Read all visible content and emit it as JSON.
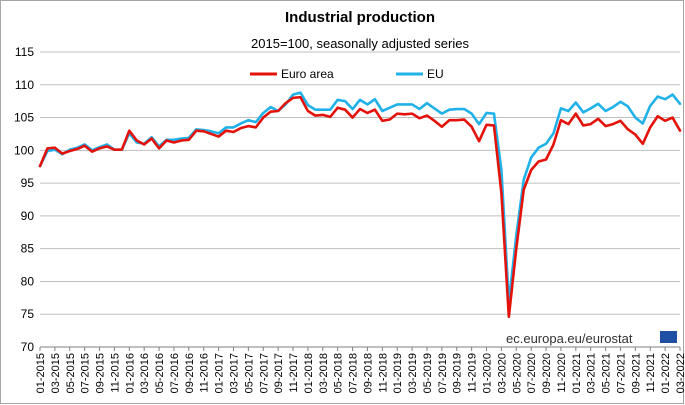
{
  "chart_data": {
    "type": "line",
    "title": "Industrial production",
    "subtitle": "2015=100, seasonally adjusted series",
    "xlabel": "",
    "ylabel": "",
    "ylim": [
      70,
      115
    ],
    "yticks": [
      70,
      75,
      80,
      85,
      90,
      95,
      100,
      105,
      110,
      115
    ],
    "grid": true,
    "legend_position": "top-center",
    "source": "ec.europa.eu/eurostat",
    "x_tick_labels": [
      "01-2015",
      "03-2015",
      "05-2015",
      "07-2015",
      "09-2015",
      "11-2015",
      "01-2016",
      "03-2016",
      "05-2016",
      "07-2016",
      "09-2016",
      "11-2016",
      "01-2017",
      "03-2017",
      "05-2017",
      "07-2017",
      "09-2017",
      "11-2017",
      "01-2018",
      "03-2018",
      "05-2018",
      "07-2018",
      "09-2018",
      "11-2018",
      "01-2019",
      "03-2019",
      "05-2019",
      "07-2019",
      "09-2019",
      "11-2019",
      "01-2020",
      "03-2020",
      "05-2020",
      "07-2020",
      "09-2020",
      "11-2020",
      "01-2021",
      "03-2021",
      "05-2021",
      "07-2021",
      "09-2021",
      "11-2021",
      "01-2022",
      "03-2022"
    ],
    "series": [
      {
        "name": "Euro area",
        "color": "#e3120b",
        "values": [
          97.6,
          100.3,
          100.4,
          99.5,
          99.9,
          100.2,
          100.7,
          99.8,
          100.3,
          100.6,
          100.1,
          100.1,
          103.0,
          101.5,
          100.9,
          101.8,
          100.3,
          101.5,
          101.2,
          101.5,
          101.6,
          103.0,
          102.9,
          102.5,
          102.1,
          103.0,
          102.8,
          103.4,
          103.7,
          103.5,
          105.0,
          105.9,
          106.0,
          107.2,
          108.0,
          108.1,
          106.0,
          105.3,
          105.4,
          105.1,
          106.5,
          106.2,
          105.0,
          106.3,
          105.7,
          106.2,
          104.5,
          104.7,
          105.6,
          105.5,
          105.6,
          104.9,
          105.3,
          104.5,
          103.6,
          104.6,
          104.6,
          104.7,
          103.6,
          101.4,
          103.9,
          103.8,
          93.5,
          74.6,
          85.0,
          94.0,
          97.0,
          98.3,
          98.6,
          100.9,
          104.6,
          104.0,
          105.6,
          103.8,
          104.0,
          104.8,
          103.7,
          104.0,
          104.5,
          103.2,
          102.4,
          101.0,
          103.5,
          105.2,
          104.5,
          105.0,
          103.0
        ]
      },
      {
        "name": "EU",
        "color": "#20b1e9",
        "values": [
          97.6,
          99.9,
          100.1,
          99.4,
          100.1,
          100.4,
          100.9,
          100.0,
          100.5,
          100.9,
          100.1,
          100.1,
          102.6,
          101.2,
          101.0,
          102.0,
          100.6,
          101.6,
          101.6,
          101.8,
          101.9,
          103.2,
          103.1,
          102.9,
          102.6,
          103.5,
          103.5,
          104.1,
          104.6,
          104.3,
          105.7,
          106.6,
          106.0,
          107.0,
          108.5,
          108.8,
          106.9,
          106.2,
          106.2,
          106.2,
          107.7,
          107.5,
          106.3,
          107.7,
          107.0,
          107.8,
          106.0,
          106.5,
          107.0,
          107.0,
          107.0,
          106.3,
          107.2,
          106.4,
          105.6,
          106.2,
          106.3,
          106.3,
          105.6,
          104.0,
          105.7,
          105.6,
          97.0,
          76.8,
          87.0,
          95.5,
          98.9,
          100.4,
          101.0,
          102.6,
          106.4,
          106.0,
          107.3,
          105.8,
          106.4,
          107.1,
          106.0,
          106.6,
          107.4,
          106.7,
          105.0,
          104.1,
          106.8,
          108.2,
          107.8,
          108.5,
          107.1
        ]
      }
    ]
  }
}
